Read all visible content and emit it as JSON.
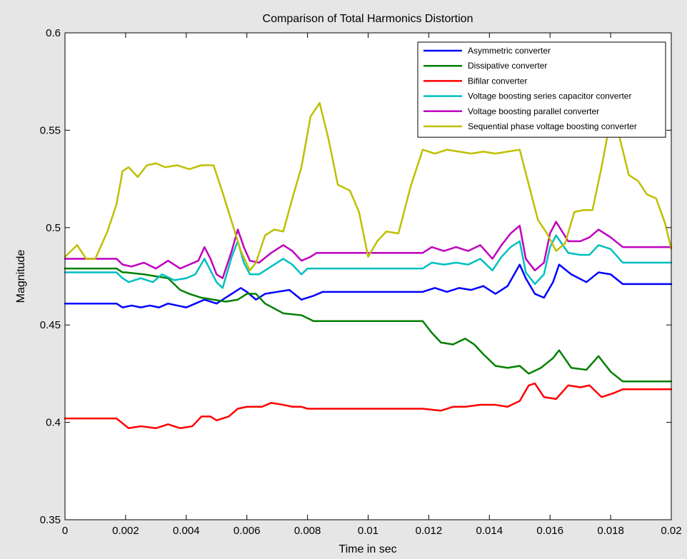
{
  "chart_data": {
    "type": "line",
    "title": "Comparison of Total Harmonics Distortion",
    "xlabel": "Time in sec",
    "ylabel": "Magnitude",
    "xlim": [
      0,
      0.02
    ],
    "ylim": [
      0.35,
      0.6
    ],
    "xticks": [
      0,
      0.002,
      0.004,
      0.006,
      0.008,
      0.01,
      0.012,
      0.014,
      0.016,
      0.018,
      0.02
    ],
    "xtick_labels": [
      "0",
      "0.002",
      "0.004",
      "0.006",
      "0.008",
      "0.01",
      "0.012",
      "0.014",
      "0.016",
      "0.018",
      "0.02"
    ],
    "yticks": [
      0.35,
      0.4,
      0.45,
      0.5,
      0.55,
      0.6
    ],
    "ytick_labels": [
      "0.35",
      "0.4",
      "0.45",
      "0.5",
      "0.55",
      "0.6"
    ],
    "grid": false,
    "legend_position": "top-right",
    "series": [
      {
        "name": "Asymmetric converter",
        "color": "#0000ff",
        "x": [
          0,
          0.0017,
          0.0019,
          0.0022,
          0.0025,
          0.0028,
          0.0031,
          0.0034,
          0.0037,
          0.004,
          0.0043,
          0.0046,
          0.0048,
          0.005,
          0.0052,
          0.0055,
          0.0058,
          0.006,
          0.0063,
          0.0066,
          0.007,
          0.0074,
          0.0078,
          0.0082,
          0.0085,
          0.0118,
          0.0122,
          0.0126,
          0.013,
          0.0134,
          0.0138,
          0.0142,
          0.0146,
          0.015,
          0.0152,
          0.0155,
          0.0158,
          0.0161,
          0.0163,
          0.0167,
          0.0172,
          0.0176,
          0.018,
          0.0184,
          0.02
        ],
        "y": [
          0.461,
          0.461,
          0.459,
          0.46,
          0.459,
          0.46,
          0.459,
          0.461,
          0.46,
          0.459,
          0.461,
          0.463,
          0.462,
          0.461,
          0.463,
          0.466,
          0.469,
          0.467,
          0.463,
          0.466,
          0.467,
          0.468,
          0.463,
          0.465,
          0.467,
          0.467,
          0.469,
          0.467,
          0.469,
          0.468,
          0.47,
          0.466,
          0.47,
          0.481,
          0.474,
          0.466,
          0.464,
          0.472,
          0.481,
          0.476,
          0.472,
          0.477,
          0.476,
          0.471,
          0.471
        ]
      },
      {
        "name": "Dissipative converter",
        "color": "#008000",
        "x": [
          0,
          0.0017,
          0.0019,
          0.002,
          0.0026,
          0.003,
          0.0034,
          0.0038,
          0.0041,
          0.0045,
          0.0049,
          0.0053,
          0.0057,
          0.006,
          0.0063,
          0.0066,
          0.0072,
          0.0078,
          0.0082,
          0.0118,
          0.0121,
          0.0124,
          0.0128,
          0.0132,
          0.0135,
          0.0138,
          0.0142,
          0.0146,
          0.015,
          0.0153,
          0.0157,
          0.0161,
          0.0163,
          0.0167,
          0.0172,
          0.0176,
          0.018,
          0.0184,
          0.02
        ],
        "y": [
          0.479,
          0.479,
          0.477,
          0.477,
          0.476,
          0.475,
          0.474,
          0.468,
          0.466,
          0.464,
          0.463,
          0.462,
          0.463,
          0.466,
          0.466,
          0.461,
          0.456,
          0.455,
          0.452,
          0.452,
          0.446,
          0.441,
          0.44,
          0.443,
          0.44,
          0.435,
          0.429,
          0.428,
          0.429,
          0.425,
          0.428,
          0.433,
          0.437,
          0.428,
          0.427,
          0.434,
          0.426,
          0.421,
          0.421
        ]
      },
      {
        "name": "Bifilar converter",
        "color": "#ff0000",
        "x": [
          0,
          0.0017,
          0.0021,
          0.0025,
          0.003,
          0.0034,
          0.0038,
          0.0042,
          0.0045,
          0.0048,
          0.005,
          0.0054,
          0.0057,
          0.006,
          0.0065,
          0.0068,
          0.0072,
          0.0075,
          0.0078,
          0.008,
          0.0118,
          0.0124,
          0.0128,
          0.0132,
          0.0137,
          0.0142,
          0.0146,
          0.015,
          0.0153,
          0.0155,
          0.0158,
          0.0162,
          0.0166,
          0.017,
          0.0173,
          0.0177,
          0.0181,
          0.0184,
          0.02
        ],
        "y": [
          0.402,
          0.402,
          0.397,
          0.398,
          0.397,
          0.399,
          0.397,
          0.398,
          0.403,
          0.403,
          0.401,
          0.403,
          0.407,
          0.408,
          0.408,
          0.41,
          0.409,
          0.408,
          0.408,
          0.407,
          0.407,
          0.406,
          0.408,
          0.408,
          0.409,
          0.409,
          0.408,
          0.411,
          0.419,
          0.42,
          0.413,
          0.412,
          0.419,
          0.418,
          0.419,
          0.413,
          0.415,
          0.417,
          0.417
        ]
      },
      {
        "name": "Voltage boosting series capacitor converter",
        "color": "#00bfbf",
        "x": [
          0,
          0.0017,
          0.0019,
          0.0021,
          0.0025,
          0.0029,
          0.0032,
          0.0036,
          0.004,
          0.0043,
          0.0046,
          0.0048,
          0.005,
          0.0052,
          0.0055,
          0.0057,
          0.0059,
          0.0061,
          0.0064,
          0.0068,
          0.0072,
          0.0075,
          0.0078,
          0.008,
          0.0118,
          0.0121,
          0.0125,
          0.0129,
          0.0133,
          0.0137,
          0.0141,
          0.0144,
          0.0147,
          0.015,
          0.0152,
          0.0155,
          0.0158,
          0.016,
          0.0162,
          0.0166,
          0.017,
          0.0173,
          0.0176,
          0.018,
          0.0184,
          0.02
        ],
        "y": [
          0.477,
          0.477,
          0.474,
          0.472,
          0.474,
          0.472,
          0.476,
          0.473,
          0.474,
          0.476,
          0.484,
          0.478,
          0.472,
          0.469,
          0.485,
          0.493,
          0.482,
          0.476,
          0.476,
          0.48,
          0.484,
          0.481,
          0.476,
          0.479,
          0.479,
          0.482,
          0.481,
          0.482,
          0.481,
          0.484,
          0.478,
          0.485,
          0.49,
          0.493,
          0.477,
          0.471,
          0.476,
          0.49,
          0.496,
          0.487,
          0.486,
          0.486,
          0.491,
          0.489,
          0.482,
          0.482
        ]
      },
      {
        "name": "Voltage boosting parallel converter",
        "color": "#bf00bf",
        "x": [
          0,
          0.0017,
          0.0019,
          0.0022,
          0.0026,
          0.003,
          0.0034,
          0.0038,
          0.0041,
          0.0044,
          0.0046,
          0.0048,
          0.005,
          0.0052,
          0.0055,
          0.0057,
          0.0059,
          0.0061,
          0.0064,
          0.0068,
          0.0072,
          0.0075,
          0.0078,
          0.0081,
          0.0083,
          0.0118,
          0.0121,
          0.0125,
          0.0129,
          0.0133,
          0.0137,
          0.0141,
          0.0144,
          0.0147,
          0.015,
          0.0152,
          0.0155,
          0.0158,
          0.016,
          0.0162,
          0.0166,
          0.017,
          0.0173,
          0.0176,
          0.018,
          0.0184,
          0.02
        ],
        "y": [
          0.484,
          0.484,
          0.481,
          0.48,
          0.482,
          0.479,
          0.483,
          0.479,
          0.481,
          0.483,
          0.49,
          0.484,
          0.476,
          0.474,
          0.488,
          0.499,
          0.49,
          0.483,
          0.482,
          0.487,
          0.491,
          0.488,
          0.483,
          0.485,
          0.487,
          0.487,
          0.49,
          0.488,
          0.49,
          0.488,
          0.491,
          0.484,
          0.491,
          0.497,
          0.501,
          0.484,
          0.478,
          0.482,
          0.497,
          0.503,
          0.493,
          0.493,
          0.495,
          0.499,
          0.495,
          0.49,
          0.49
        ]
      },
      {
        "name": "Sequential phase voltage boosting converter",
        "color": "#bfbf00",
        "x": [
          0,
          0.0004,
          0.0007,
          0.001,
          0.0014,
          0.0017,
          0.0019,
          0.0021,
          0.0024,
          0.0027,
          0.003,
          0.0033,
          0.0037,
          0.0041,
          0.0045,
          0.0049,
          0.0052,
          0.0055,
          0.0058,
          0.0061,
          0.0063,
          0.0066,
          0.0069,
          0.0072,
          0.0075,
          0.0078,
          0.0081,
          0.0084,
          0.0087,
          0.009,
          0.0094,
          0.0097,
          0.01,
          0.0103,
          0.0106,
          0.011,
          0.0114,
          0.0118,
          0.0122,
          0.0126,
          0.013,
          0.0134,
          0.0138,
          0.0142,
          0.0146,
          0.015,
          0.0153,
          0.0156,
          0.0159,
          0.0162,
          0.0165,
          0.0168,
          0.0171,
          0.0174,
          0.0177,
          0.018,
          0.0183,
          0.0186,
          0.0189,
          0.0192,
          0.0195,
          0.0198,
          0.02
        ],
        "y": [
          0.485,
          0.491,
          0.484,
          0.484,
          0.498,
          0.512,
          0.529,
          0.531,
          0.526,
          0.532,
          0.533,
          0.531,
          0.532,
          0.53,
          0.532,
          0.532,
          0.518,
          0.503,
          0.488,
          0.478,
          0.482,
          0.496,
          0.499,
          0.498,
          0.515,
          0.531,
          0.557,
          0.564,
          0.545,
          0.522,
          0.519,
          0.508,
          0.485,
          0.493,
          0.498,
          0.497,
          0.521,
          0.54,
          0.538,
          0.54,
          0.539,
          0.538,
          0.539,
          0.538,
          0.539,
          0.54,
          0.522,
          0.504,
          0.497,
          0.488,
          0.492,
          0.508,
          0.509,
          0.509,
          0.531,
          0.556,
          0.546,
          0.527,
          0.524,
          0.517,
          0.515,
          0.502,
          0.489
        ]
      }
    ]
  }
}
